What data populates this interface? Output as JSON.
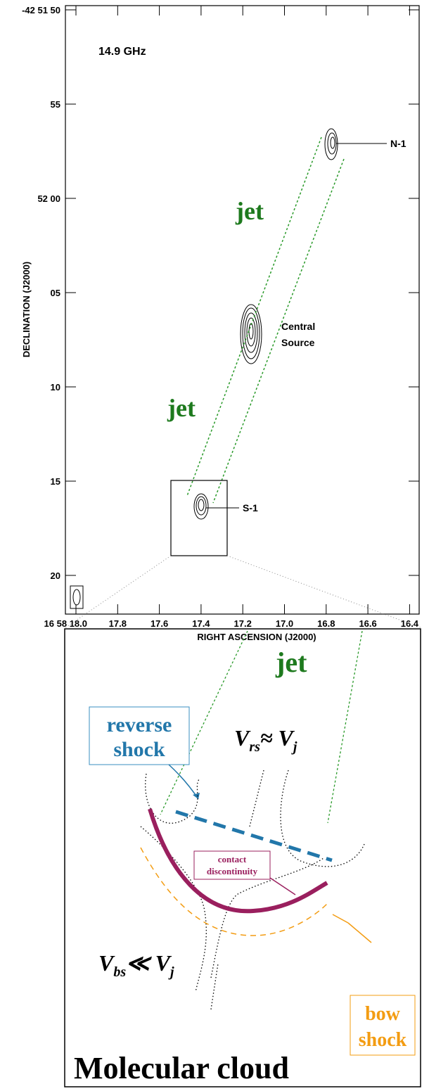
{
  "top_panel": {
    "frequency": "14.9 GHz",
    "y_axis_label": "DECLINATION (J2000)",
    "x_axis_label": "RIGHT ASCENSION (J2000)",
    "y_ticks": [
      "-42 51 50",
      "55",
      "52 00",
      "05",
      "10",
      "15",
      "20"
    ],
    "x_ticks": [
      "16 58 18.0",
      "17.8",
      "17.6",
      "17.4",
      "17.2",
      "17.0",
      "16.8",
      "16.6",
      "16.4"
    ],
    "sources": {
      "north": "N-1",
      "central_line1": "Central",
      "central_line2": "Source",
      "south": "S-1"
    },
    "jet_labels": [
      "jet",
      "jet"
    ]
  },
  "bottom_panel": {
    "jet": "jet",
    "reverse_shock_line1": "reverse",
    "reverse_shock_line2": "shock",
    "v_rs": "V",
    "v_rs_sub": "rs",
    "v_rs_rel": "≈ V",
    "v_rs_j": "j",
    "contact_line1": "contact",
    "contact_line2": "discontinuity",
    "v_bs": "V",
    "v_bs_sub": "bs",
    "v_bs_rel": "≪ V",
    "v_bs_j": "j",
    "bow_shock_line1": "bow",
    "bow_shock_line2": "shock",
    "cloud": "Molecular cloud"
  }
}
